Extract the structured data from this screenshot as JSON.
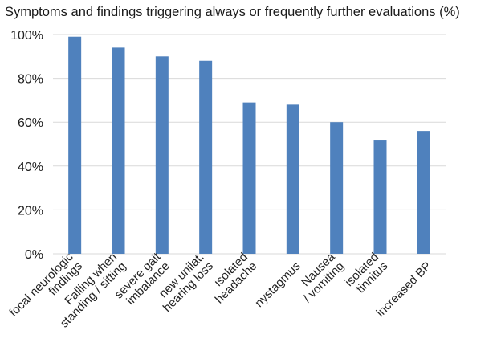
{
  "chart_data": {
    "type": "bar",
    "title": "Symptoms and findings triggering always or frequently further evaluations (%)",
    "xlabel": "",
    "ylabel": "",
    "categories": [
      [
        "focal neurologic",
        "findings"
      ],
      [
        "Falling when",
        "standing / sitting"
      ],
      [
        "severe gait",
        "imbalance"
      ],
      [
        "new unilat.",
        "hearing loss"
      ],
      [
        "isolated",
        "headache"
      ],
      [
        "nystagmus"
      ],
      [
        "Nausea",
        "/ vomiting"
      ],
      [
        "isolated",
        "tinnitus"
      ],
      [
        "increased BP"
      ]
    ],
    "values": [
      99,
      94,
      90,
      88,
      69,
      68,
      60,
      52,
      56
    ],
    "ylim": [
      0,
      100
    ],
    "yticks": [
      0,
      20,
      40,
      60,
      80,
      100
    ],
    "ytick_labels": [
      "0%",
      "20%",
      "40%",
      "60%",
      "80%",
      "100%"
    ],
    "grid": true,
    "bar_color": "#4f81bd",
    "grid_color": "#d9d9d9"
  }
}
